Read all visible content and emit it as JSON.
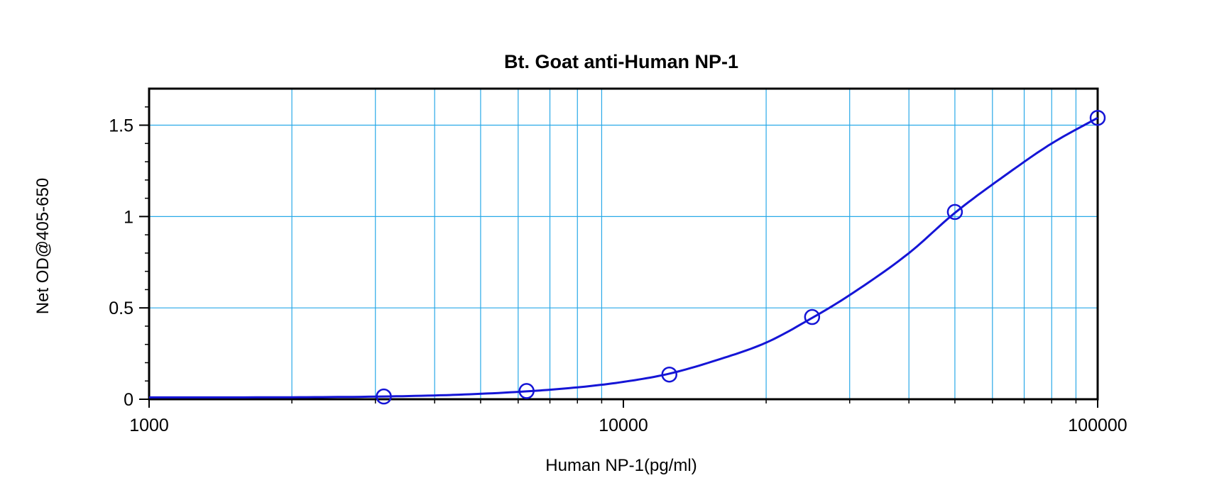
{
  "chart_data": {
    "type": "scatter",
    "title": "Bt. Goat anti-Human NP-1",
    "xlabel": "Human NP-1(pg/ml)",
    "ylabel": "Net OD@405-650",
    "x_scale": "log",
    "xlim": [
      1000,
      100000
    ],
    "ylim": [
      0,
      1.7
    ],
    "x_ticks": [
      "1000",
      "10000",
      "100000"
    ],
    "y_ticks": [
      "0",
      "0.5",
      "1",
      "1.5"
    ],
    "grid": true,
    "legend": "none",
    "series": [
      {
        "marker": "open-circle",
        "x": [
          3125,
          6250,
          12500,
          25000,
          50000,
          100000
        ],
        "y": [
          0.015,
          0.045,
          0.135,
          0.45,
          1.025,
          1.54
        ]
      }
    ],
    "fit_curve": {
      "x": [
        1000,
        2000,
        3125,
        4500,
        6250,
        8000,
        10000,
        12500,
        16000,
        20000,
        25000,
        30000,
        40000,
        50000,
        65000,
        80000,
        100000
      ],
      "y": [
        0.01,
        0.011,
        0.015,
        0.025,
        0.043,
        0.065,
        0.095,
        0.14,
        0.22,
        0.31,
        0.445,
        0.57,
        0.8,
        1.02,
        1.24,
        1.4,
        1.54
      ]
    }
  },
  "colors": {
    "grid": "#29a9e8",
    "series": "#1515d6",
    "axis": "#000000"
  }
}
